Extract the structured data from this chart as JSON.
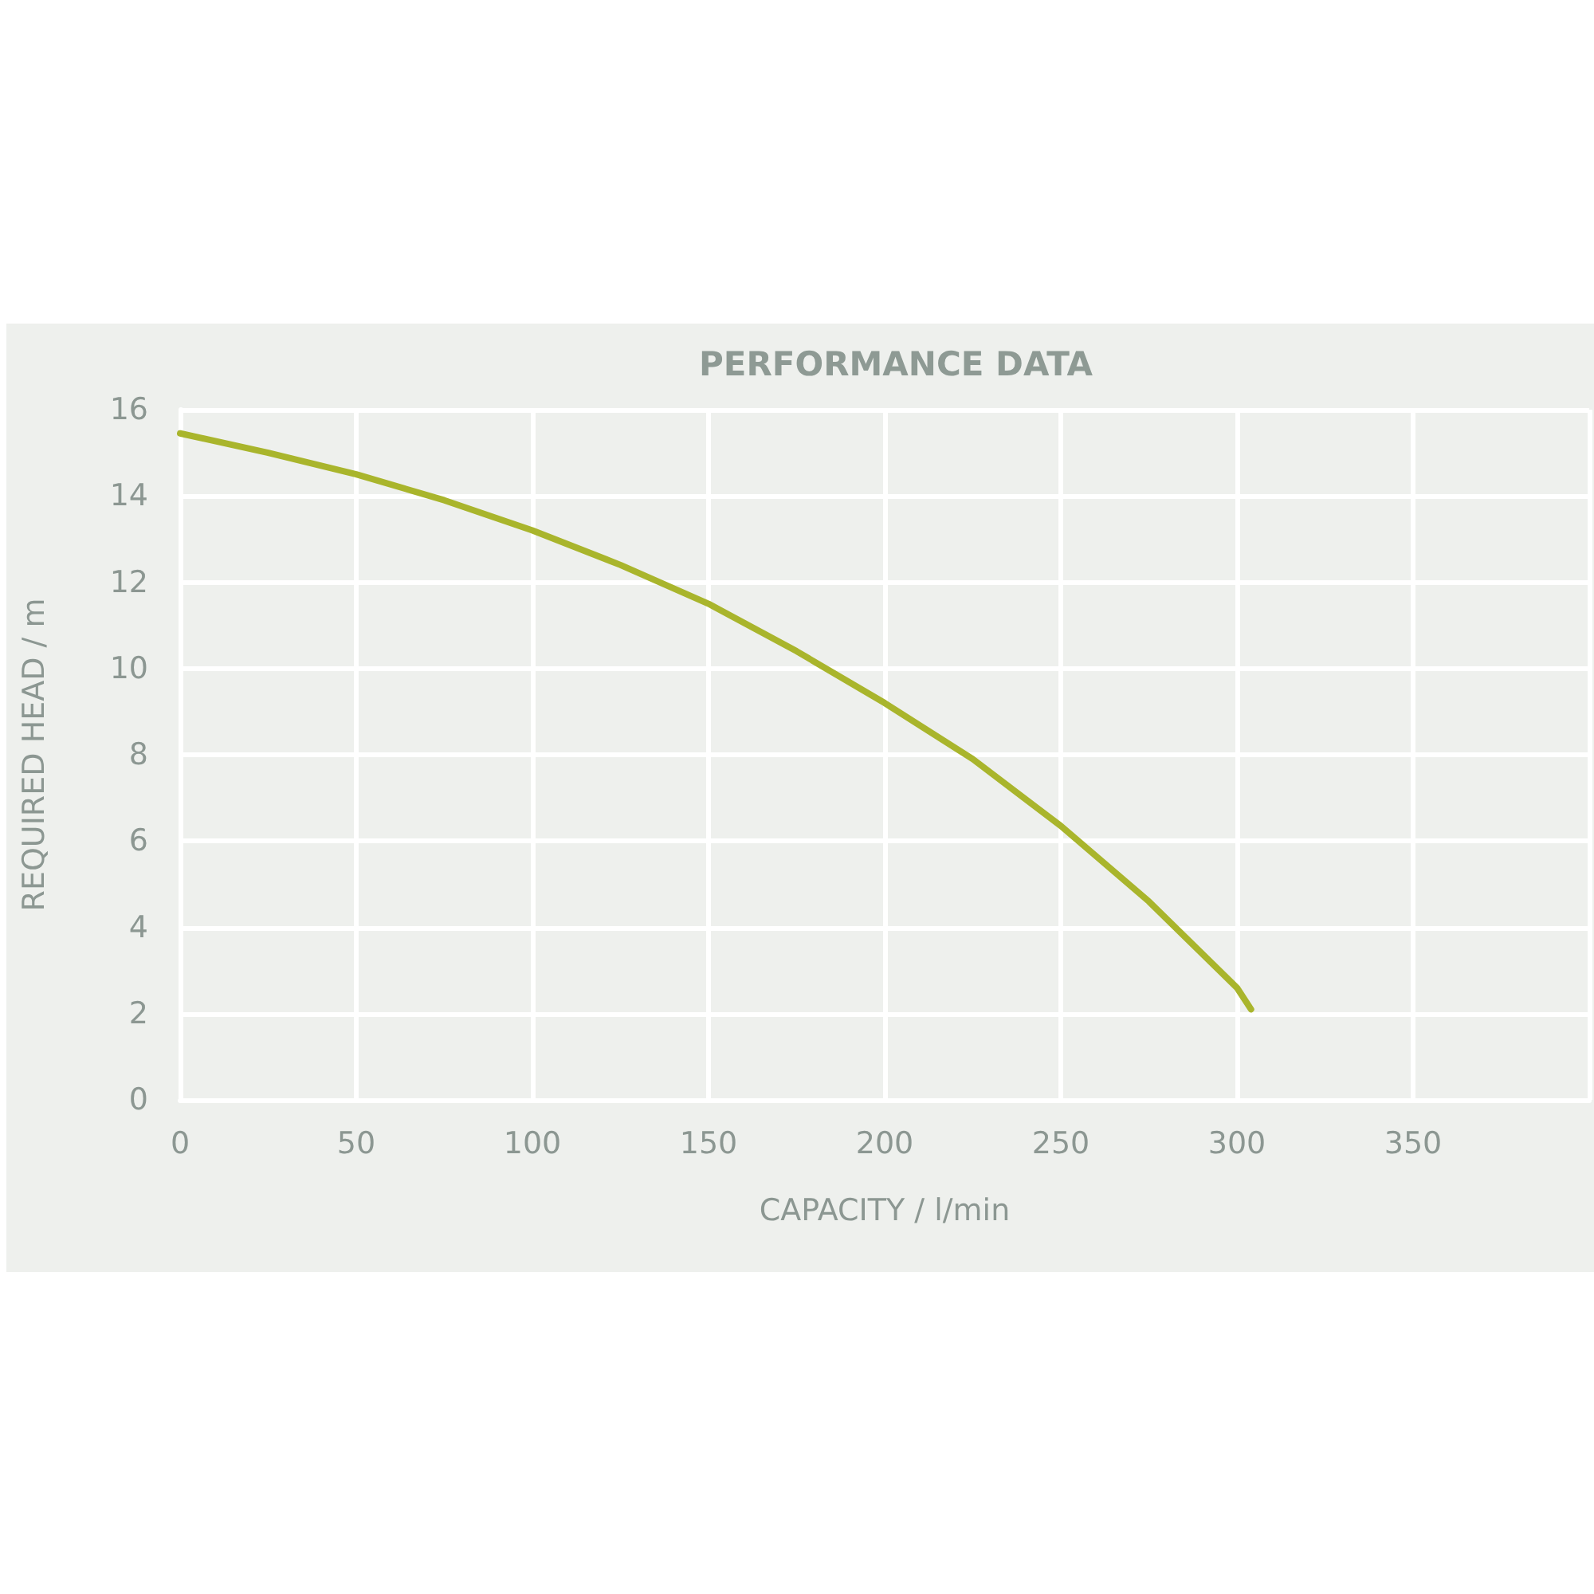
{
  "chart_data": {
    "type": "line",
    "title": "PERFORMANCE DATA",
    "xlabel": "CAPACITY / l/min",
    "ylabel": "REQUIRED HEAD / m",
    "x": [
      0,
      25,
      50,
      75,
      100,
      125,
      150,
      175,
      200,
      225,
      250,
      275,
      300,
      304
    ],
    "series": [
      {
        "color": "#a9b52c",
        "values": [
          15.45,
          15.0,
          14.5,
          13.9,
          13.2,
          12.4,
          11.5,
          10.4,
          9.2,
          7.9,
          6.35,
          4.6,
          2.6,
          2.1
        ]
      }
    ],
    "xlim": [
      0,
      400
    ],
    "xticks": [
      0,
      50,
      100,
      150,
      200,
      250,
      300,
      350,
      {
        "value": 400,
        "label": null
      }
    ],
    "ylim": [
      0,
      16
    ],
    "yticks": [
      0,
      2,
      4,
      6,
      8,
      10,
      12,
      14,
      16
    ],
    "grid": true,
    "marker": "none",
    "line_style": "solid"
  }
}
